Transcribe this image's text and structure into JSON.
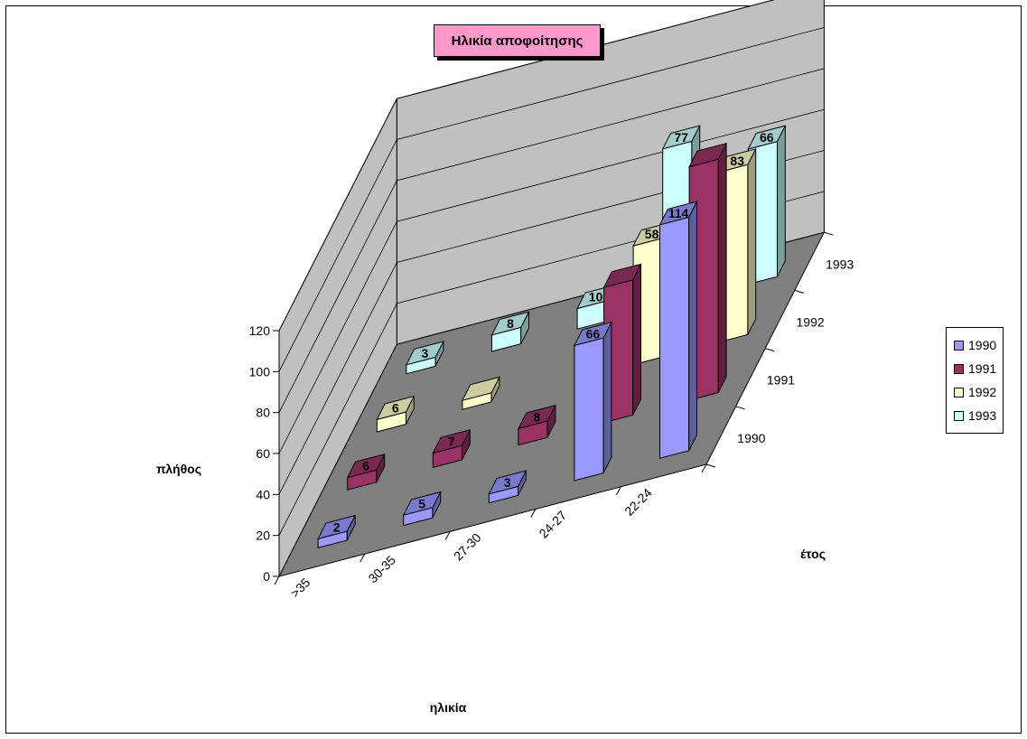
{
  "chart_data": {
    "type": "bar",
    "title": "Ηλικία αποφοίτησης",
    "xlabel": "ηλικία",
    "ylabel": "πλήθος",
    "zlabel": "έτος",
    "categories": [
      ">35",
      "30-35",
      "27-30",
      "24-27",
      "22-24"
    ],
    "ylim": [
      0,
      120
    ],
    "yticks": [
      "0",
      "20",
      "40",
      "60",
      "80",
      "100",
      "120"
    ],
    "series": [
      {
        "name": "1990",
        "values": [
          2,
          5,
          3,
          66,
          114
        ],
        "labels": [
          "2",
          "5",
          "3",
          "66",
          "114"
        ]
      },
      {
        "name": "1991",
        "values": [
          6,
          7,
          8,
          66,
          114
        ],
        "labels": [
          "6",
          "7",
          "8",
          "",
          ""
        ]
      },
      {
        "name": "1992",
        "values": [
          6,
          0,
          null,
          58,
          83
        ],
        "labels": [
          "6",
          "",
          "",
          "58",
          "83"
        ]
      },
      {
        "name": "1993",
        "values": [
          3,
          8,
          10,
          77,
          66
        ],
        "labels": [
          "3",
          "8",
          "10",
          "77",
          "66"
        ]
      }
    ],
    "legend_position": "right",
    "grid": true
  },
  "colors": {
    "1990": "#9999ff",
    "1991": "#993366",
    "1992": "#ffffcc",
    "1993": "#ccffff",
    "floor": "#808080",
    "wall": "#c0c0c0",
    "title_bg": "#ff99cc"
  }
}
